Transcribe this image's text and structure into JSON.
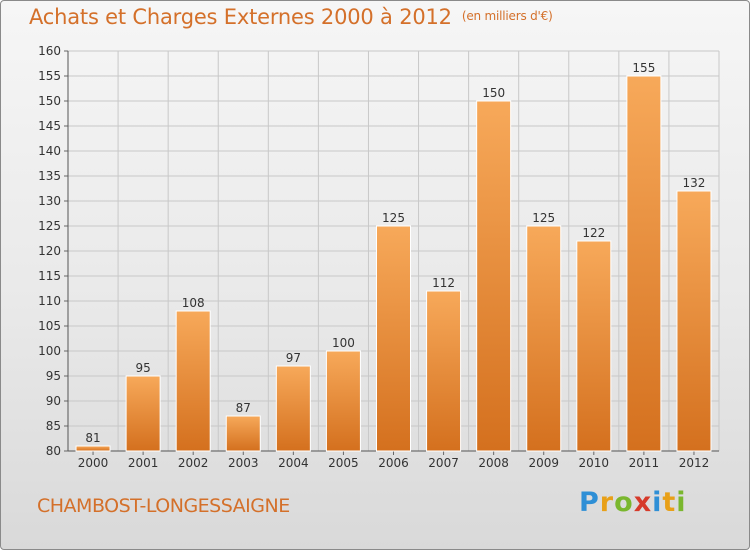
{
  "header": {
    "title": "Achats et Charges Externes 2000 à 2012",
    "unit": "(en milliers d'€)"
  },
  "footer": {
    "commune": "CHAMBOST-LONGESSAIGNE",
    "logo_letters": [
      "P",
      "r",
      "o",
      "x",
      "i",
      "t",
      "i"
    ],
    "logo_colors": [
      "#2e8fd6",
      "#e8a018",
      "#7ab72e",
      "#d63a2a",
      "#2e8fd6",
      "#e8a018",
      "#7ab72e"
    ]
  },
  "colors": {
    "bar_top": "#f7a95a",
    "bar_bottom": "#d4701e",
    "accent": "#d4702a"
  },
  "chart_data": {
    "type": "bar",
    "categories": [
      "2000",
      "2001",
      "2002",
      "2003",
      "2004",
      "2005",
      "2006",
      "2007",
      "2008",
      "2009",
      "2010",
      "2011",
      "2012"
    ],
    "values": [
      81,
      95,
      108,
      87,
      97,
      100,
      125,
      112,
      150,
      125,
      122,
      155,
      132
    ],
    "ylim": [
      80,
      160
    ],
    "yticks": [
      80,
      85,
      90,
      95,
      100,
      105,
      110,
      115,
      120,
      125,
      130,
      135,
      140,
      145,
      150,
      155,
      160
    ],
    "grid": true
  }
}
